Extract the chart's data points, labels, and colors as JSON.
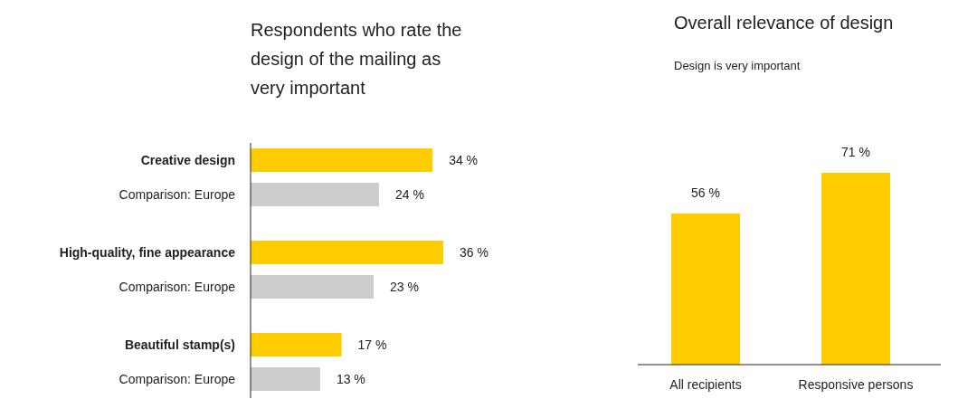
{
  "chart_data": [
    {
      "type": "bar",
      "orientation": "horizontal",
      "title": "Respondents who rate the design of the mailing as very important",
      "categories": [
        "Creative design",
        "Comparison: Europe",
        "High-quality, fine appearance",
        "Comparison: Europe",
        "Beautiful stamp(s)",
        "Comparison: Europe"
      ],
      "values": [
        34,
        24,
        36,
        23,
        17,
        13
      ],
      "colors": [
        "#ffcc00",
        "#cccccc",
        "#ffcc00",
        "#cccccc",
        "#ffcc00",
        "#cccccc"
      ],
      "value_labels": [
        "34 %",
        "24 %",
        "36 %",
        "23 %",
        "17 %",
        "13 %"
      ]
    },
    {
      "type": "bar",
      "title": "Overall relevance of design",
      "subtitle": "Design is very important",
      "categories": [
        "All recipients",
        "Responsive persons"
      ],
      "values": [
        56,
        71
      ],
      "color": "#ffcc00",
      "value_labels": [
        "56 %",
        "71 %"
      ]
    }
  ]
}
